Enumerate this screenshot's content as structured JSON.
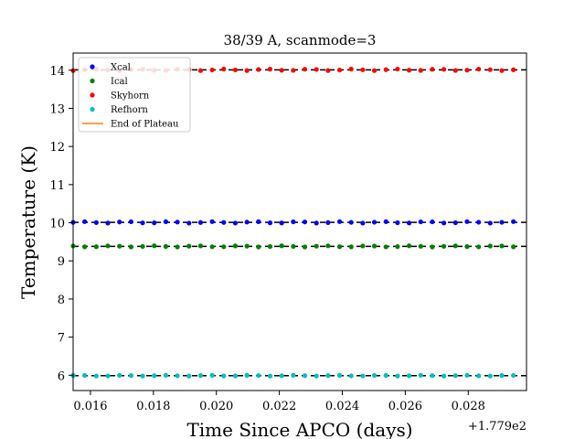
{
  "chart_data": {
    "type": "scatter",
    "title": "38/39 A, scanmode=3",
    "xlabel": "Time Since APCO (days)",
    "ylabel": "Temperature (K)",
    "x_offset_label": "+1.779e2",
    "xlim": [
      0.01545,
      0.02985
    ],
    "ylim": [
      5.6,
      14.45
    ],
    "x_ticks": [
      0.016,
      0.018,
      0.02,
      0.022,
      0.024,
      0.026,
      0.028
    ],
    "x_tick_labels": [
      "0.016",
      "0.018",
      "0.020",
      "0.022",
      "0.024",
      "0.026",
      "0.028"
    ],
    "y_ticks": [
      6,
      7,
      8,
      9,
      10,
      11,
      12,
      13,
      14
    ],
    "y_tick_labels": [
      "6",
      "7",
      "8",
      "9",
      "10",
      "11",
      "12",
      "13",
      "14"
    ],
    "grid": false,
    "legend_position": "top-left",
    "x_start": 0.01545,
    "x_step": 0.000368,
    "point_count": 39,
    "series": [
      {
        "name": "Xcal",
        "color": "#0000ff",
        "mean": 10.01,
        "jitter": 0.02,
        "fit": 10.01
      },
      {
        "name": "Ical",
        "color": "#008000",
        "mean": 9.38,
        "jitter": 0.015,
        "fit": 9.38
      },
      {
        "name": "Skyhorn",
        "color": "#ff0000",
        "mean": 14.01,
        "jitter": 0.02,
        "fit": 14.01
      },
      {
        "name": "Refhorn",
        "color": "#00bfbf",
        "mean": 5.99,
        "jitter": 0.01,
        "fit": 5.99
      }
    ],
    "plateau_line": {
      "name": "End of Plateau",
      "color": "#ff7f0e"
    },
    "fit_line_color": "#000000"
  }
}
